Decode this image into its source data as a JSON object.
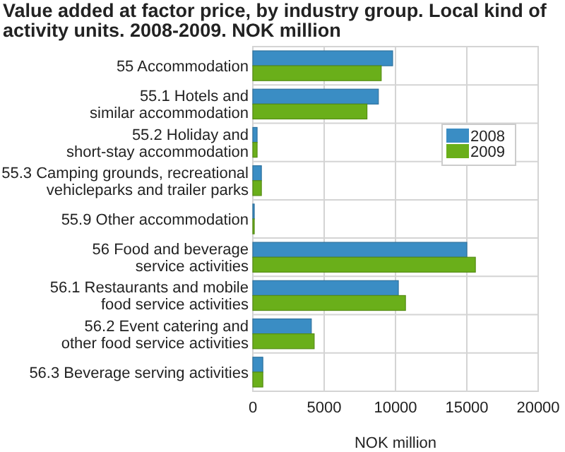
{
  "chart_data": {
    "type": "bar",
    "orientation": "horizontal",
    "title": "Value added at factor price, by industry group. Local kind of activity units. 2008-2009. NOK million",
    "xlabel": "NOK million",
    "categories": [
      "55 Accommodation",
      "55.1 Hotels and similar accommodation",
      "55.2 Holiday and short-stay accommodation",
      "55.3 Camping grounds, recreational vehicleparks and trailer parks",
      "55.9 Other accommodation",
      "56 Food and beverage service activities",
      "56.1 Restaurants and mobile food service activities",
      "56.2 Event catering and other food service activities",
      "56.3 Beverage serving activities"
    ],
    "series": [
      {
        "name": "2008",
        "color": "#3a8dc4",
        "values": [
          9800,
          8800,
          300,
          600,
          100,
          15000,
          10200,
          4100,
          700
        ]
      },
      {
        "name": "2009",
        "color": "#6aaf1a",
        "values": [
          9000,
          8000,
          300,
          600,
          100,
          15600,
          10700,
          4300,
          700
        ]
      }
    ],
    "xlim": [
      0,
      20000
    ],
    "xticks": [
      0,
      5000,
      10000,
      15000,
      20000
    ],
    "grid": true,
    "legend": "right"
  }
}
